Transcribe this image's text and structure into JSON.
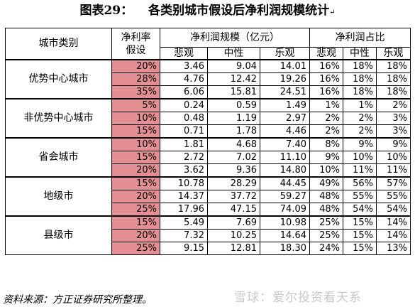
{
  "title": {
    "label": "图表29：",
    "text": "各类别城市假设后净利润规模统计",
    "mark": "↵"
  },
  "table": {
    "headers": {
      "city_type": "城市类别",
      "rate_line1": "净利率",
      "rate_line2": "假设",
      "scale_group": "净利润规模（亿元）",
      "share_group": "净利润占比",
      "pessimistic": "悲观",
      "neutral": "中性",
      "optimistic": "乐观"
    },
    "groups": [
      {
        "city": "优势中心城市",
        "rows": [
          {
            "rate": "20%",
            "p": "3.46",
            "n": "9.04",
            "o": "14.01",
            "sp": "16%",
            "sn": "18%",
            "so": "18%"
          },
          {
            "rate": "28%",
            "p": "4.76",
            "n": "12.42",
            "o": "19.26",
            "sp": "16%",
            "sn": "18%",
            "so": "18%"
          },
          {
            "rate": "35%",
            "p": "6.06",
            "n": "15.81",
            "o": "24.51",
            "sp": "16%",
            "sn": "18%",
            "so": "18%"
          }
        ]
      },
      {
        "city": "非优势中心城市",
        "rows": [
          {
            "rate": "5%",
            "p": "0.24",
            "n": "0.59",
            "o": "1.49",
            "sp": "1%",
            "sn": "1%",
            "so": "2%"
          },
          {
            "rate": "10%",
            "p": "0.48",
            "n": "1.19",
            "o": "2.97",
            "sp": "2%",
            "sn": "2%",
            "so": "3%"
          },
          {
            "rate": "15%",
            "p": "0.71",
            "n": "1.78",
            "o": "4.46",
            "sp": "2%",
            "sn": "2%",
            "so": "3%"
          }
        ]
      },
      {
        "city": "省会城市",
        "rows": [
          {
            "rate": "10%",
            "p": "1.81",
            "n": "4.68",
            "o": "7.40",
            "sp": "8%",
            "sn": "9%",
            "so": "9%"
          },
          {
            "rate": "15%",
            "p": "2.72",
            "n": "7.02",
            "o": "11.10",
            "sp": "9%",
            "sn": "10%",
            "so": "10%"
          },
          {
            "rate": "20%",
            "p": "3.62",
            "n": "9.36",
            "o": "14.80",
            "sp": "10%",
            "sn": "11%",
            "so": "11%"
          }
        ]
      },
      {
        "city": "地级市",
        "rows": [
          {
            "rate": "15%",
            "p": "10.78",
            "n": "28.29",
            "o": "44.45",
            "sp": "49%",
            "sn": "56%",
            "so": "57%"
          },
          {
            "rate": "20%",
            "p": "14.37",
            "n": "37.72",
            "o": "59.27",
            "sp": "48%",
            "sn": "55%",
            "so": "55%"
          },
          {
            "rate": "25%",
            "p": "17.96",
            "n": "47.15",
            "o": "74.09",
            "sp": "48%",
            "sn": "54%",
            "so": "54%"
          }
        ]
      },
      {
        "city": "县级市",
        "rows": [
          {
            "rate": "15%",
            "p": "5.49",
            "n": "7.69",
            "o": "10.98",
            "sp": "25%",
            "sn": "15%",
            "so": "14%"
          },
          {
            "rate": "20%",
            "p": "7.32",
            "n": "10.25",
            "o": "14.64",
            "sp": "25%",
            "sn": "15%",
            "so": "14%"
          },
          {
            "rate": "25%",
            "p": "9.15",
            "n": "12.81",
            "o": "18.30",
            "sp": "24%",
            "sn": "15%",
            "so": "13%"
          }
        ]
      }
    ]
  },
  "source": "资料来源：方正证券研究所整理。",
  "watermark": "雪球：爱尔投资看天系",
  "colors": {
    "rate_cell_bg": "#e38f93",
    "watermark": "#c9c9c9"
  }
}
